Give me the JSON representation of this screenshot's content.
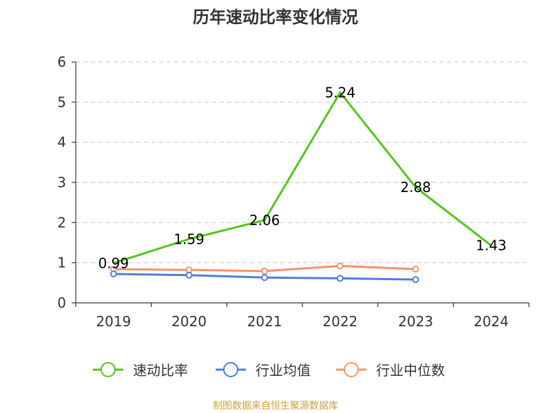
{
  "chart_data": {
    "type": "line",
    "title": "历年速动比率变化情况",
    "categories": [
      "2019",
      "2020",
      "2021",
      "2022",
      "2023",
      "2024"
    ],
    "yticks": [
      "0",
      "1",
      "2",
      "3",
      "4",
      "5",
      "6"
    ],
    "ylim": [
      0,
      6
    ],
    "grid": true,
    "legend_position": "bottom",
    "series": [
      {
        "name": "速动比率",
        "color": "#52c41a",
        "values": [
          0.99,
          1.59,
          2.06,
          5.24,
          2.88,
          1.43
        ],
        "labels": [
          "0.99",
          "1.59",
          "2.06",
          "5.24",
          "2.88",
          "1.43"
        ]
      },
      {
        "name": "行业均值",
        "color": "#4a7fdb",
        "values": [
          0.72,
          0.69,
          0.63,
          0.61,
          0.58,
          null
        ]
      },
      {
        "name": "行业中位数",
        "color": "#f5926a",
        "values": [
          0.84,
          0.82,
          0.79,
          0.92,
          0.84,
          null
        ]
      }
    ]
  },
  "source": "制图数据来自恒生聚源数据库"
}
